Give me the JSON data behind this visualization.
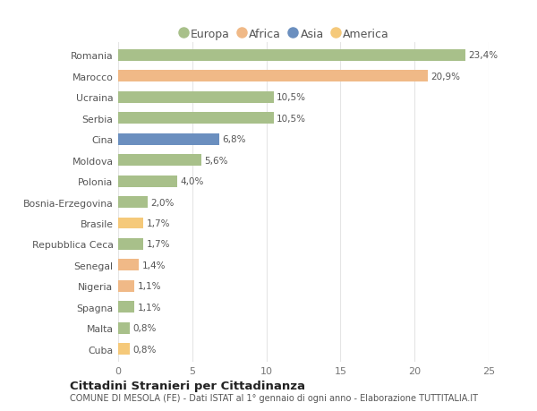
{
  "categories": [
    "Romania",
    "Marocco",
    "Ucraina",
    "Serbia",
    "Cina",
    "Moldova",
    "Polonia",
    "Bosnia-Erzegovina",
    "Brasile",
    "Repubblica Ceca",
    "Senegal",
    "Nigeria",
    "Spagna",
    "Malta",
    "Cuba"
  ],
  "values": [
    23.4,
    20.9,
    10.5,
    10.5,
    6.8,
    5.6,
    4.0,
    2.0,
    1.7,
    1.7,
    1.4,
    1.1,
    1.1,
    0.8,
    0.8
  ],
  "labels": [
    "23,4%",
    "20,9%",
    "10,5%",
    "10,5%",
    "6,8%",
    "5,6%",
    "4,0%",
    "2,0%",
    "1,7%",
    "1,7%",
    "1,4%",
    "1,1%",
    "1,1%",
    "0,8%",
    "0,8%"
  ],
  "colors": [
    "#a8c08a",
    "#f0b987",
    "#a8c08a",
    "#a8c08a",
    "#6b8fbf",
    "#a8c08a",
    "#a8c08a",
    "#a8c08a",
    "#f5c97a",
    "#a8c08a",
    "#f0b987",
    "#f0b987",
    "#a8c08a",
    "#a8c08a",
    "#f5c97a"
  ],
  "legend": {
    "Europa": "#a8c08a",
    "Africa": "#f0b987",
    "Asia": "#6b8fbf",
    "America": "#f5c97a"
  },
  "xlim": [
    0,
    25
  ],
  "xticks": [
    0,
    5,
    10,
    15,
    20,
    25
  ],
  "title": "Cittadini Stranieri per Cittadinanza",
  "subtitle": "COMUNE DI MESOLA (FE) - Dati ISTAT al 1° gennaio di ogni anno - Elaborazione TUTTITALIA.IT",
  "bg_color": "#ffffff",
  "grid_color": "#e5e5e5",
  "bar_height": 0.55,
  "label_fontsize": 7.5,
  "ytick_fontsize": 7.8,
  "xtick_fontsize": 8.0
}
